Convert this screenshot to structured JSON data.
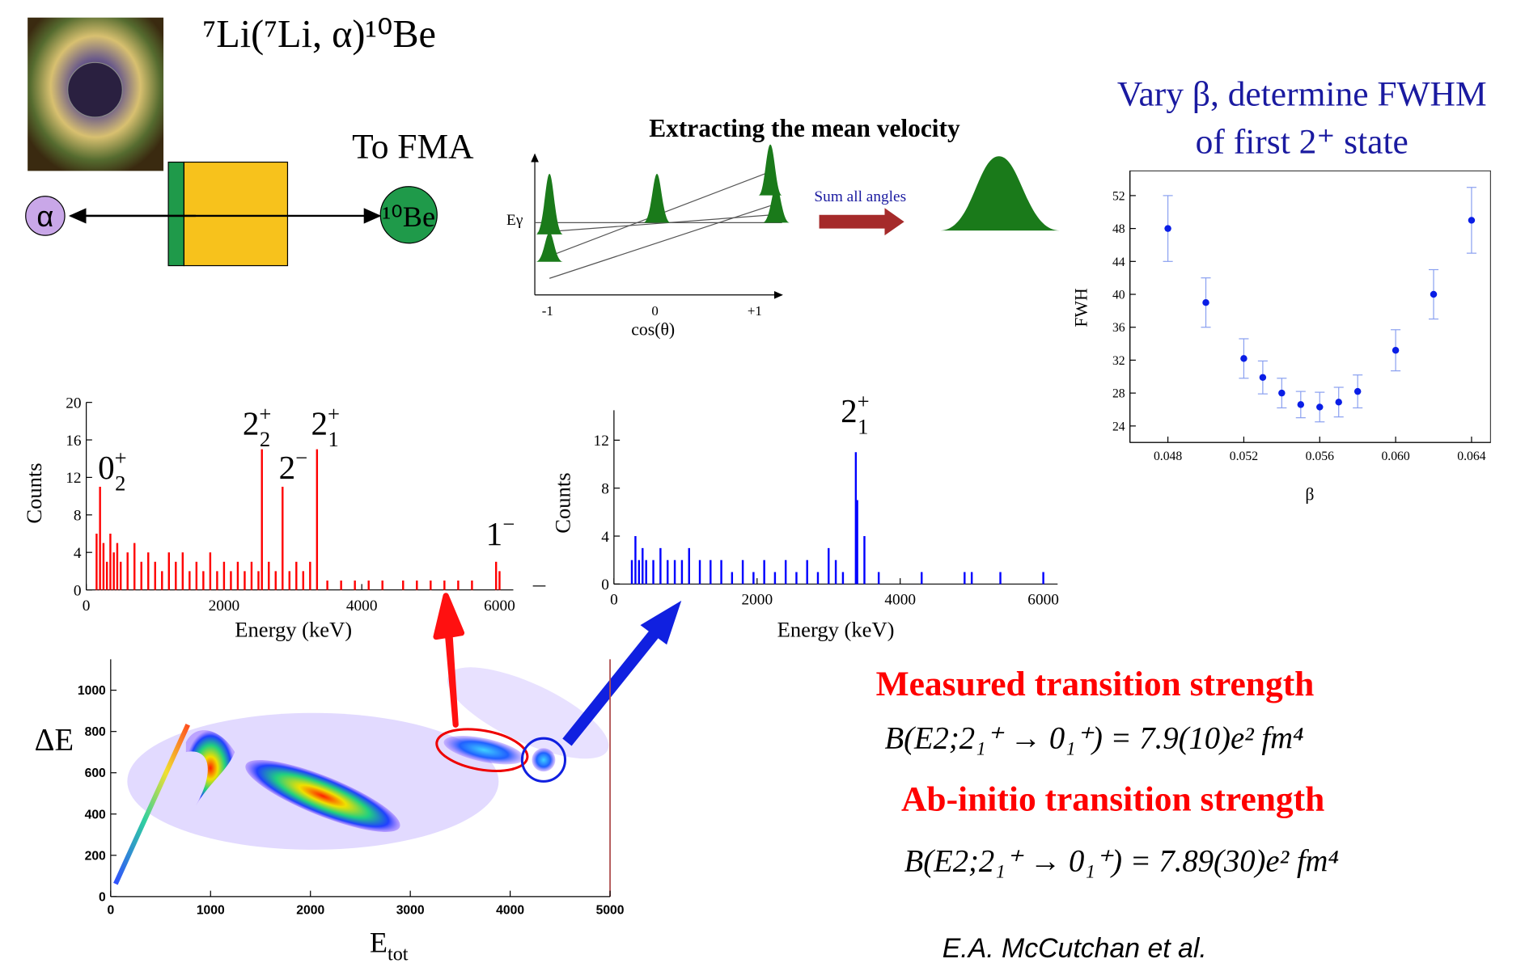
{
  "reaction": {
    "title": "⁷Li(⁷Li, α)¹⁰Be",
    "to_fma": "To FMA",
    "alpha": "α",
    "product": "¹⁰Be"
  },
  "velocity": {
    "title": "Extracting the mean velocity",
    "y_label": "Eγ",
    "x_label": "cos(θ)",
    "x_ticks": [
      "-1",
      "0",
      "+1"
    ],
    "arrow_label": "Sum all angles"
  },
  "chart_data": [
    {
      "type": "errorbar",
      "title_lines": [
        "Vary β, determine FWHM",
        "of first 2⁺ state"
      ],
      "x_label": "β",
      "y_label": "FWH",
      "x": [
        0.048,
        0.05,
        0.052,
        0.053,
        0.054,
        0.055,
        0.056,
        0.057,
        0.058,
        0.06,
        0.062,
        0.064
      ],
      "values": [
        48,
        39,
        32.2,
        29.9,
        28,
        26.6,
        26.3,
        26.9,
        28.2,
        33.2,
        40,
        49
      ],
      "errors": [
        4,
        3,
        2.4,
        2,
        1.8,
        1.6,
        1.8,
        1.8,
        2,
        2.5,
        3,
        4
      ],
      "color": "#0a1ee6",
      "error_color": "#8aa0f0",
      "xlim": [
        0.046,
        0.065
      ],
      "ylim": [
        22,
        55
      ],
      "xticks": [
        0.048,
        0.052,
        0.056,
        {
          "value": 0.06,
          "label": "0.060"
        },
        0.064
      ],
      "yticks": [
        24,
        28,
        32,
        36,
        40,
        44,
        48,
        52
      ]
    },
    {
      "type": "spectrum",
      "x_label": "Energy (keV)",
      "y_label": "Counts",
      "color": "#ff0000",
      "x": [
        150,
        200,
        250,
        300,
        350,
        400,
        450,
        500,
        600,
        700,
        800,
        900,
        1000,
        1100,
        1200,
        1300,
        1400,
        1500,
        1600,
        1700,
        1800,
        1900,
        2000,
        2100,
        2200,
        2300,
        2400,
        2500,
        2550,
        2650,
        2750,
        2850,
        2950,
        3050,
        3150,
        3250,
        3350,
        3500,
        3700,
        3900,
        4100,
        4300,
        4600,
        4800,
        5000,
        5200,
        5400,
        5600,
        5950,
        6000
      ],
      "values": [
        6,
        11,
        5,
        3,
        6,
        4,
        5,
        3,
        4,
        5,
        3,
        4,
        3,
        2,
        4,
        3,
        4,
        2,
        3,
        2,
        4,
        2,
        3,
        2,
        3,
        2,
        3,
        2,
        15,
        3,
        2,
        11,
        2,
        3,
        2,
        3,
        15,
        1,
        1,
        1,
        1,
        1,
        1,
        1,
        1,
        1,
        1,
        1,
        3,
        2
      ],
      "annotations": [
        {
          "base": "0",
          "sub": "2",
          "sup": "+"
        },
        {
          "base": "2",
          "sub": "2",
          "sup": "+"
        },
        {
          "base": "2",
          "sup": "−"
        },
        {
          "base": "2",
          "sub": "1",
          "sup": "+"
        },
        {
          "base": "1",
          "sup": "−"
        }
      ],
      "xlim": [
        0,
        6200
      ],
      "ylim": [
        0,
        20
      ],
      "xticks": [
        0,
        2000,
        4000,
        6000
      ],
      "yticks": [
        0,
        4,
        8,
        12,
        16,
        20
      ]
    },
    {
      "type": "spectrum",
      "x_label": "Energy (keV)",
      "y_label": "Counts",
      "color": "#0000ff",
      "x": [
        250,
        300,
        350,
        400,
        450,
        550,
        650,
        750,
        850,
        950,
        1050,
        1200,
        1350,
        1500,
        1650,
        1800,
        1950,
        2100,
        2250,
        2400,
        2550,
        2700,
        2850,
        3000,
        3100,
        3200,
        3380,
        3400,
        3500,
        3700,
        4300,
        4900,
        5000,
        5400,
        6000
      ],
      "values": [
        2,
        4,
        2,
        3,
        2,
        2,
        3,
        2,
        2,
        2,
        3,
        2,
        2,
        2,
        1,
        2,
        1,
        2,
        1,
        2,
        1,
        2,
        1,
        3,
        2,
        1,
        11,
        7,
        4,
        1,
        1,
        1,
        1,
        1,
        1
      ],
      "annotations": [
        {
          "base": "2",
          "sub": "1",
          "sup": "+"
        }
      ],
      "xlim": [
        0,
        6200
      ],
      "ylim": [
        0,
        14.5
      ],
      "xticks": [
        0,
        2000,
        4000,
        6000
      ],
      "yticks": [
        0,
        4,
        8,
        12
      ]
    },
    {
      "type": "density",
      "x_label": "E",
      "x_label_sub": "tot",
      "y_label": "ΔE",
      "xlim": [
        0,
        5000
      ],
      "ylim": [
        0,
        1150
      ],
      "xticks": [
        0,
        1000,
        2000,
        3000,
        4000,
        5000
      ],
      "yticks": [
        0,
        200,
        400,
        600,
        800,
        1000
      ]
    }
  ],
  "results": {
    "measured_title": "Measured transition strength",
    "measured_formula": "B(E2;2₁⁺ → 0₁⁺) = 7.9(10)e² fm⁴",
    "abinitio_title": "Ab-initio transition strength",
    "abinitio_formula": "B(E2;2₁⁺ → 0₁⁺) = 7.89(30)e² fm⁴"
  },
  "citation": "E.A. McCutchan et al."
}
